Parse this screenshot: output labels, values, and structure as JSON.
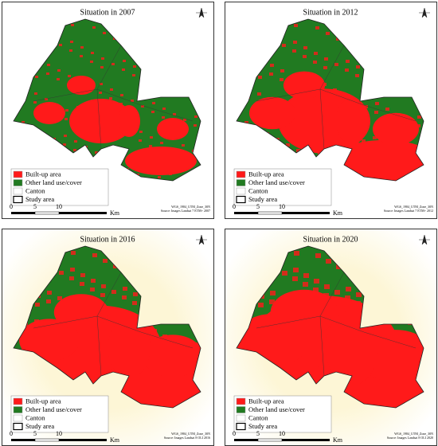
{
  "panels": [
    {
      "title": "Situation in 2007",
      "source": "Source: Images Landsat 7 ETM+ 2007"
    },
    {
      "title": "Situation in 2012",
      "source": "Source: Images Landsat 7 ETM+ 2012"
    },
    {
      "title": "Situation in 2016",
      "source": "Source: Images Landsat 8 OLI 2016"
    },
    {
      "title": "Situation in 2020",
      "source": "Source: Images Landsat 8 OLI 2020"
    }
  ],
  "projection": "WGS_1984_UTM_Zone_30N",
  "legend": {
    "items": [
      {
        "label": "Built-up area",
        "color": "#ff1a1a"
      },
      {
        "label": "Other land use/cover",
        "color": "#217a21"
      },
      {
        "label": "Canton",
        "color": "#ffffff"
      },
      {
        "label": "Study area",
        "color": "#ffffff"
      }
    ]
  },
  "scale": {
    "labels": [
      "0",
      "5",
      "10"
    ],
    "unit": "Km"
  }
}
